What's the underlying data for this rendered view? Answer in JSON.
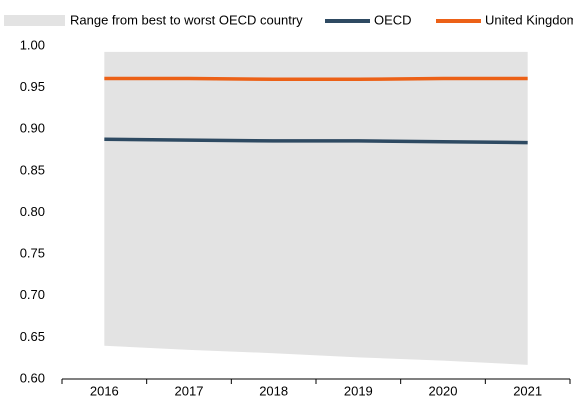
{
  "chart_data": {
    "type": "line",
    "categories": [
      "2016",
      "2017",
      "2018",
      "2019",
      "2020",
      "2021"
    ],
    "range": {
      "name": "Range from best to worst OECD country",
      "color": "#e3e3e3",
      "high": [
        0.993,
        0.993,
        0.993,
        0.993,
        0.993,
        0.993
      ],
      "low": [
        0.64,
        0.635,
        0.631,
        0.626,
        0.622,
        0.617
      ]
    },
    "series": [
      {
        "name": "OECD",
        "color": "#2e4a62",
        "values": [
          0.888,
          0.887,
          0.886,
          0.886,
          0.885,
          0.884
        ]
      },
      {
        "name": "United Kingdom",
        "color": "#ec6117",
        "values": [
          0.961,
          0.961,
          0.96,
          0.96,
          0.961,
          0.961
        ]
      }
    ],
    "ylim": [
      0.6,
      1.0
    ],
    "yticks": [
      {
        "value": 0.6,
        "label": "0.60"
      },
      {
        "value": 0.65,
        "label": "0.65"
      },
      {
        "value": 0.7,
        "label": "0.70"
      },
      {
        "value": 0.75,
        "label": "0.75"
      },
      {
        "value": 0.8,
        "label": "0.80"
      },
      {
        "value": 0.85,
        "label": "0.85"
      },
      {
        "value": 0.9,
        "label": "0.90"
      },
      {
        "value": 0.95,
        "label": "0.95"
      },
      {
        "value": 1.0,
        "label": "1.00"
      }
    ],
    "grid": false
  }
}
